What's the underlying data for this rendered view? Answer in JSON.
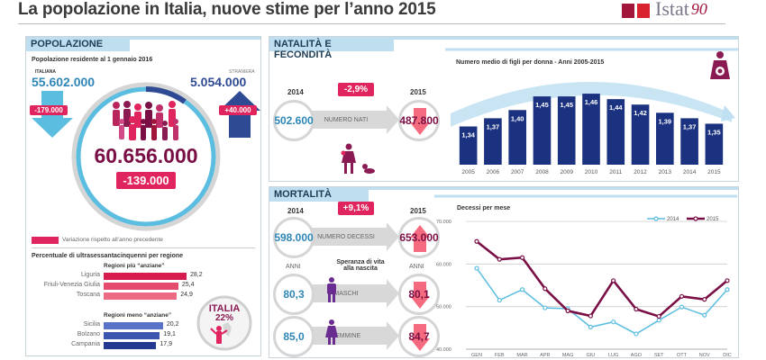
{
  "header": {
    "title": "La popolazione in Italia, nuove stime per l’anno 2015",
    "logo_text": "Istat",
    "logo_badge": "90"
  },
  "popolazione": {
    "section_title": "POPOLAZIONE",
    "subtitle": "Popolazione residente al 1 gennaio 2016",
    "italiana": {
      "label": "ITALIANA",
      "value": "55.602.000",
      "change": "-179.000"
    },
    "straniera": {
      "label": "STRANIERA",
      "value": "5.054.000",
      "change": "+40.000"
    },
    "total": "60.656.000",
    "total_change": "-139.000",
    "legend": "Variazione rispetto all’anno precedente",
    "regions_title": "Percentuale di ultrasessantacinquenni per regione",
    "older_title": "Regioni più “anziane”",
    "younger_title": "Regioni meno “anziane”",
    "older": [
      {
        "name": "Liguria",
        "value": 28.2,
        "label": "28,2"
      },
      {
        "name": "Friuli-Venezia Giulia",
        "value": 25.4,
        "label": "25,4"
      },
      {
        "name": "Toscana",
        "value": 24.9,
        "label": "24,9"
      }
    ],
    "younger": [
      {
        "name": "Sicilia",
        "value": 20.2,
        "label": "20,2"
      },
      {
        "name": "Bolzano",
        "value": 19.1,
        "label": "19,1"
      },
      {
        "name": "Campania",
        "value": 17.9,
        "label": "17,9"
      }
    ],
    "italia_label": "ITALIA",
    "italia_value": "22%"
  },
  "natalita": {
    "section_title": "NATALITÀ E FECONDITÀ",
    "year_from": "2014",
    "year_to": "2015",
    "value_from": "502.600",
    "value_to": "487.800",
    "band_label": "NUMERO NATI",
    "change": "-2,9%"
  },
  "mortalita": {
    "section_title": "MORTALITÀ",
    "year_from": "2014",
    "year_to": "2015",
    "deaths_from": "598.000",
    "deaths_to": "653.000",
    "deaths_label": "NUMERO DECESSI",
    "deaths_change": "+9,1%",
    "anni_label": "ANNI",
    "life_title_1": "Speranza di vita",
    "life_title_2": "alla nascita",
    "maschi_label": "MASCHI",
    "maschi_from": "80,3",
    "maschi_to": "80,1",
    "femmine_label": "FEMMINE",
    "femmine_from": "85,0",
    "femmine_to": "84,7"
  },
  "colors": {
    "magenta": "#e0245e",
    "plum": "#7a0f45",
    "navy": "#1b3281",
    "lightblue": "#5bbde0",
    "pink": "#f46a7e"
  },
  "chart_data": [
    {
      "type": "bar",
      "title": "Numero medio di figli per donna - Anni 2005-2015",
      "categories": [
        "2005",
        "2006",
        "2007",
        "2008",
        "2009",
        "2010",
        "2011",
        "2012",
        "2013",
        "2014",
        "2015"
      ],
      "values": [
        1.34,
        1.37,
        1.4,
        1.45,
        1.45,
        1.46,
        1.44,
        1.42,
        1.39,
        1.37,
        1.35
      ],
      "labels": [
        "1,34",
        "1,37",
        "1,40",
        "1,45",
        "1,45",
        "1,46",
        "1,44",
        "1,42",
        "1,39",
        "1,37",
        "1,35"
      ],
      "xlabel": "",
      "ylabel": "",
      "ylim": [
        1.2,
        1.48
      ]
    },
    {
      "type": "line",
      "title": "Decessi per mese",
      "categories": [
        "GEN",
        "FEB",
        "MAR",
        "APR",
        "MAG",
        "GIU",
        "LUG",
        "AGO",
        "SET",
        "OTT",
        "NOV",
        "DIC"
      ],
      "series": [
        {
          "name": "2014",
          "color": "#5bbde0",
          "values": [
            59000,
            51500,
            54000,
            49700,
            49500,
            45200,
            46400,
            43600,
            46800,
            49900,
            48000,
            54000
          ]
        },
        {
          "name": "2015",
          "color": "#7a0f45",
          "values": [
            65300,
            61100,
            61500,
            54200,
            49000,
            47800,
            56100,
            49400,
            47700,
            52400,
            51700,
            56100
          ]
        }
      ],
      "yticks": [
        "40.000",
        "50.000",
        "60.000",
        "70.000"
      ],
      "ylim": [
        40000,
        70000
      ],
      "legend": "top-right",
      "grid": true
    }
  ]
}
